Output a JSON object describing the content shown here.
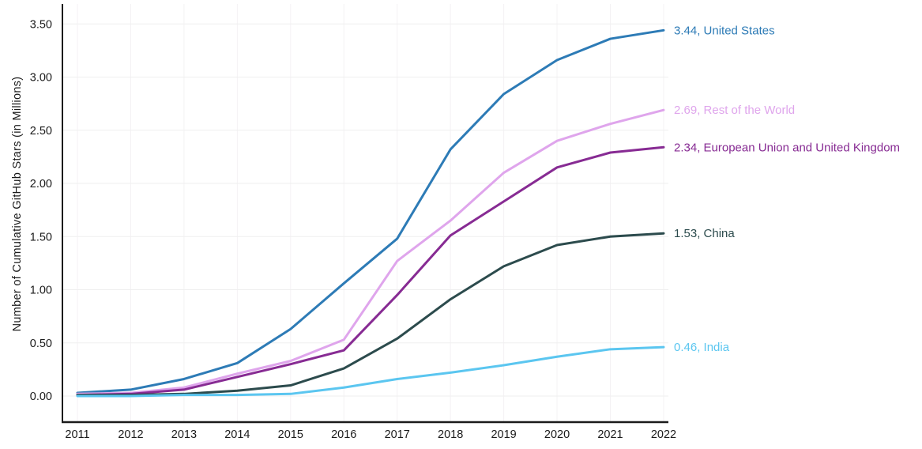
{
  "chart_data": {
    "type": "line",
    "title": "",
    "xlabel": "",
    "ylabel": "Number of Cumulative GitHub Stars (in Millions)",
    "x": [
      2011,
      2012,
      2013,
      2014,
      2015,
      2016,
      2017,
      2018,
      2019,
      2020,
      2021,
      2022
    ],
    "x_tick_labels": [
      "2011",
      "2012",
      "2013",
      "2014",
      "2015",
      "2016",
      "2017",
      "2018",
      "2019",
      "2020",
      "2021",
      "2022"
    ],
    "y_tick_labels": [
      "0.00",
      "0.50",
      "1.00",
      "1.50",
      "2.00",
      "2.50",
      "3.00",
      "3.50"
    ],
    "y_tick_values": [
      0.0,
      0.5,
      1.0,
      1.5,
      2.0,
      2.5,
      3.0,
      3.5
    ],
    "ylim": [
      0,
      3.5
    ],
    "grid": true,
    "legend_position": "right-end-labels",
    "axis_color": "#1b1b1b",
    "grid_color_horizontal": "#efefef",
    "grid_color_vertical": "#f4f2f4",
    "series": [
      {
        "name": "United States",
        "color": "#2d7bb6",
        "end_value": "3.44",
        "end_label": "3.44, United States",
        "values": [
          0.03,
          0.06,
          0.16,
          0.31,
          0.63,
          1.06,
          1.48,
          2.32,
          2.84,
          3.16,
          3.36,
          3.44
        ]
      },
      {
        "name": "Rest of the World",
        "color": "#dfa5ec",
        "end_value": "2.69",
        "end_label": "2.69, Rest of the World",
        "values": [
          0.02,
          0.03,
          0.08,
          0.21,
          0.33,
          0.53,
          1.27,
          1.65,
          2.1,
          2.4,
          2.56,
          2.69
        ]
      },
      {
        "name": "European Union and United Kingdom",
        "color": "#872b93",
        "end_value": "2.34",
        "end_label": "2.34, European Union and United Kingdom",
        "values": [
          0.01,
          0.02,
          0.06,
          0.18,
          0.3,
          0.43,
          0.95,
          1.51,
          1.83,
          2.15,
          2.29,
          2.34
        ]
      },
      {
        "name": "China",
        "color": "#2c4b4d",
        "end_value": "1.53",
        "end_label": "1.53, China",
        "values": [
          0.01,
          0.01,
          0.02,
          0.05,
          0.1,
          0.26,
          0.54,
          0.91,
          1.22,
          1.42,
          1.5,
          1.53
        ]
      },
      {
        "name": "India",
        "color": "#5bc6f0",
        "end_value": "0.46",
        "end_label": "0.46, India",
        "values": [
          0.0,
          0.0,
          0.01,
          0.01,
          0.02,
          0.08,
          0.16,
          0.22,
          0.29,
          0.37,
          0.44,
          0.46
        ]
      }
    ]
  }
}
